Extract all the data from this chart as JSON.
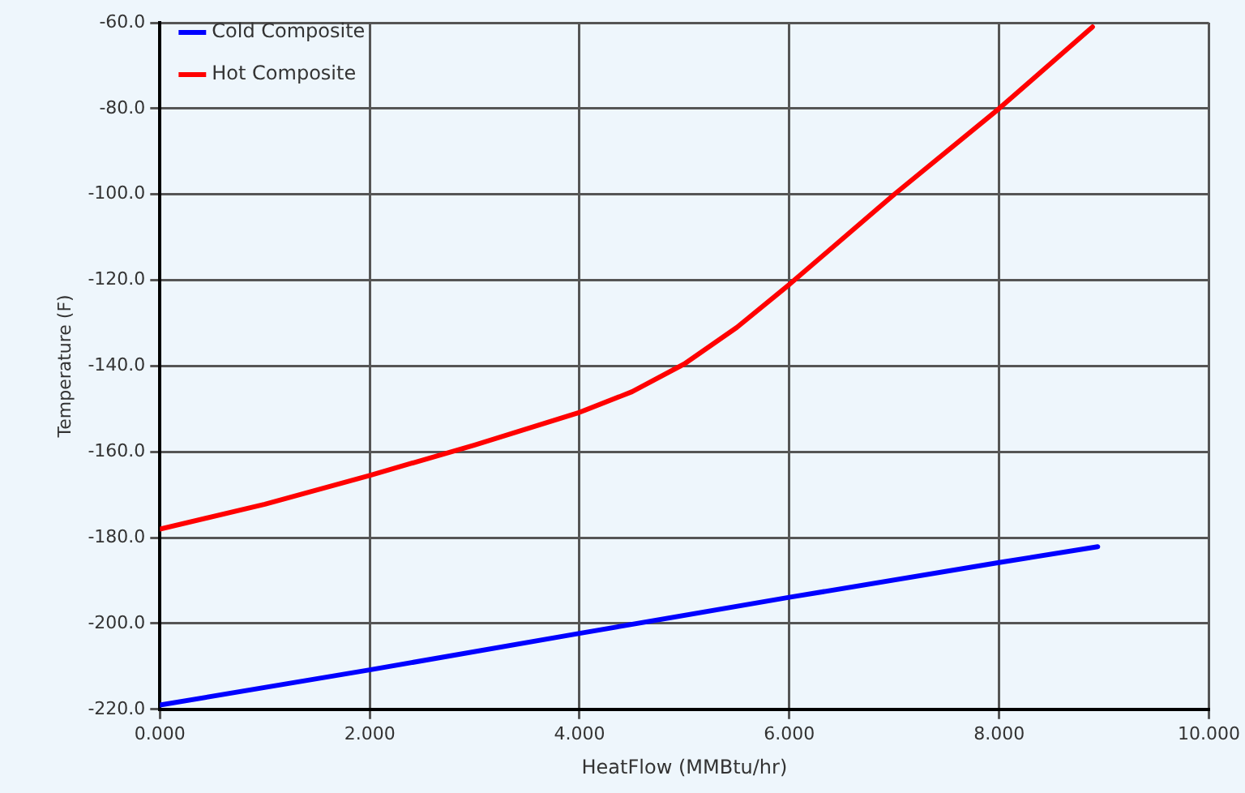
{
  "chart_data": {
    "type": "line",
    "xlabel": "HeatFlow (MMBtu/hr)",
    "ylabel": "Temperature (F)",
    "xlim": [
      0,
      10
    ],
    "ylim": [
      -220,
      -60
    ],
    "xticks": [
      {
        "value": 0,
        "label": "0.000"
      },
      {
        "value": 2,
        "label": "2.000"
      },
      {
        "value": 4,
        "label": "4.000"
      },
      {
        "value": 6,
        "label": "6.000"
      },
      {
        "value": 8,
        "label": "8.000"
      },
      {
        "value": 10,
        "label": "10.000"
      }
    ],
    "yticks": [
      {
        "value": -220,
        "label": "-220.0"
      },
      {
        "value": -200,
        "label": "-200.0"
      },
      {
        "value": -180,
        "label": "-180.0"
      },
      {
        "value": -160,
        "label": "-160.0"
      },
      {
        "value": -140,
        "label": "-140.0"
      },
      {
        "value": -120,
        "label": "-120.0"
      },
      {
        "value": -100,
        "label": "-100.0"
      },
      {
        "value": -80,
        "label": "-80.0"
      },
      {
        "value": -60,
        "label": "-60.0"
      }
    ],
    "grid": true,
    "legend": "top left",
    "marker": "none",
    "line_style": "solid",
    "series": [
      {
        "name": "Cold Composite",
        "color": "#0000ff",
        "x": [
          0,
          2,
          4,
          6,
          8,
          8.94
        ],
        "values": [
          -219,
          -210.8,
          -202.3,
          -193.9,
          -185.8,
          -182.1
        ]
      },
      {
        "name": "Hot Composite",
        "color": "#ff0000",
        "x": [
          0,
          1,
          2,
          3,
          4,
          4.5,
          5,
          5.5,
          6,
          7,
          8,
          8.89
        ],
        "values": [
          -178,
          -172.2,
          -165.5,
          -158.4,
          -150.8,
          -146,
          -139.5,
          -131,
          -121,
          -100,
          -80,
          -61
        ]
      }
    ]
  }
}
